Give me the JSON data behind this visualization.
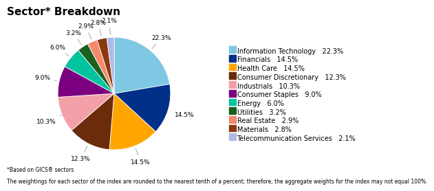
{
  "title": "Sector* Breakdown",
  "footnote1": "*Based on GICS® sectors",
  "footnote2": "The weightings for each sector of the index are rounded to the nearest tenth of a percent; therefore, the aggregate weights for the index may not equal 100%.",
  "sectors": [
    "Information Technology",
    "Financials",
    "Health Care",
    "Consumer Discretionary",
    "Industrials",
    "Consumer Staples",
    "Energy",
    "Utilities",
    "Real Estate",
    "Materials",
    "Telecommunication Services"
  ],
  "values": [
    22.3,
    14.5,
    14.5,
    12.3,
    10.3,
    9.0,
    6.0,
    3.2,
    2.9,
    2.8,
    2.1
  ],
  "colors": [
    "#7EC8E3",
    "#003087",
    "#FFA500",
    "#6B2C0C",
    "#F4A0A8",
    "#7B0080",
    "#00C4A0",
    "#1B5E20",
    "#F4896B",
    "#8B3A0F",
    "#B0B8E8"
  ],
  "background_color": "#FFFFFF",
  "title_fontsize": 11,
  "legend_fontsize": 7,
  "label_fontsize": 6.5,
  "footnote_fontsize": 5.5,
  "startangle": 90
}
